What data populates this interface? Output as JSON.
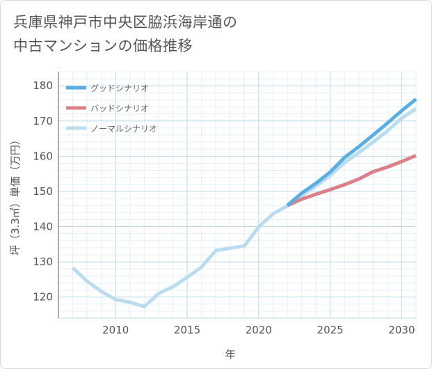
{
  "page": {
    "title_line1": "兵庫県神戸市中央区脇浜海岸通の",
    "title_line2": "中古マンションの価格推移"
  },
  "chart_data": {
    "type": "line",
    "title": "兵庫県神戸市中央区脇浜海岸通の中古マンションの価格推移",
    "xlabel": "年",
    "ylabel": "坪（3.3㎡）単価（万円）",
    "xlim": [
      2006,
      2031
    ],
    "ylim": [
      114,
      184
    ],
    "xticks": [
      2010,
      2015,
      2020,
      2025,
      2030
    ],
    "yticks": [
      120,
      130,
      140,
      150,
      160,
      170,
      180
    ],
    "grid": true,
    "legend_position": "top-left",
    "series": [
      {
        "name": "グッドシナリオ",
        "color": "#5aaee6",
        "x": [
          2022,
          2023,
          2024,
          2025,
          2026,
          2027,
          2028,
          2029,
          2030,
          2031
        ],
        "y": [
          146.0,
          149.5,
          152.3,
          155.5,
          159.6,
          162.7,
          166.0,
          169.4,
          172.9,
          176.2
        ]
      },
      {
        "name": "バッドシナリオ",
        "color": "#db8088",
        "x": [
          2022,
          2023,
          2024,
          2025,
          2026,
          2027,
          2028,
          2029,
          2030,
          2031
        ],
        "y": [
          146.0,
          147.8,
          149.2,
          150.5,
          151.9,
          153.5,
          155.6,
          156.9,
          158.5,
          160.2
        ]
      },
      {
        "name": "ノーマルシナリオ",
        "color": "#b9dcee",
        "x": [
          2007,
          2008,
          2009,
          2010,
          2011,
          2012,
          2013,
          2014,
          2015,
          2016,
          2017,
          2018,
          2019,
          2020,
          2021,
          2022,
          2023,
          2024,
          2025,
          2026,
          2027,
          2028,
          2029,
          2030,
          2031
        ],
        "y": [
          128.3,
          124.5,
          121.6,
          119.3,
          118.5,
          117.3,
          121.0,
          122.9,
          125.6,
          128.5,
          133.2,
          133.9,
          134.5,
          139.9,
          143.6,
          145.9,
          148.8,
          151.5,
          154.5,
          158.2,
          161.0,
          164.0,
          167.2,
          170.8,
          173.5
        ]
      }
    ]
  }
}
